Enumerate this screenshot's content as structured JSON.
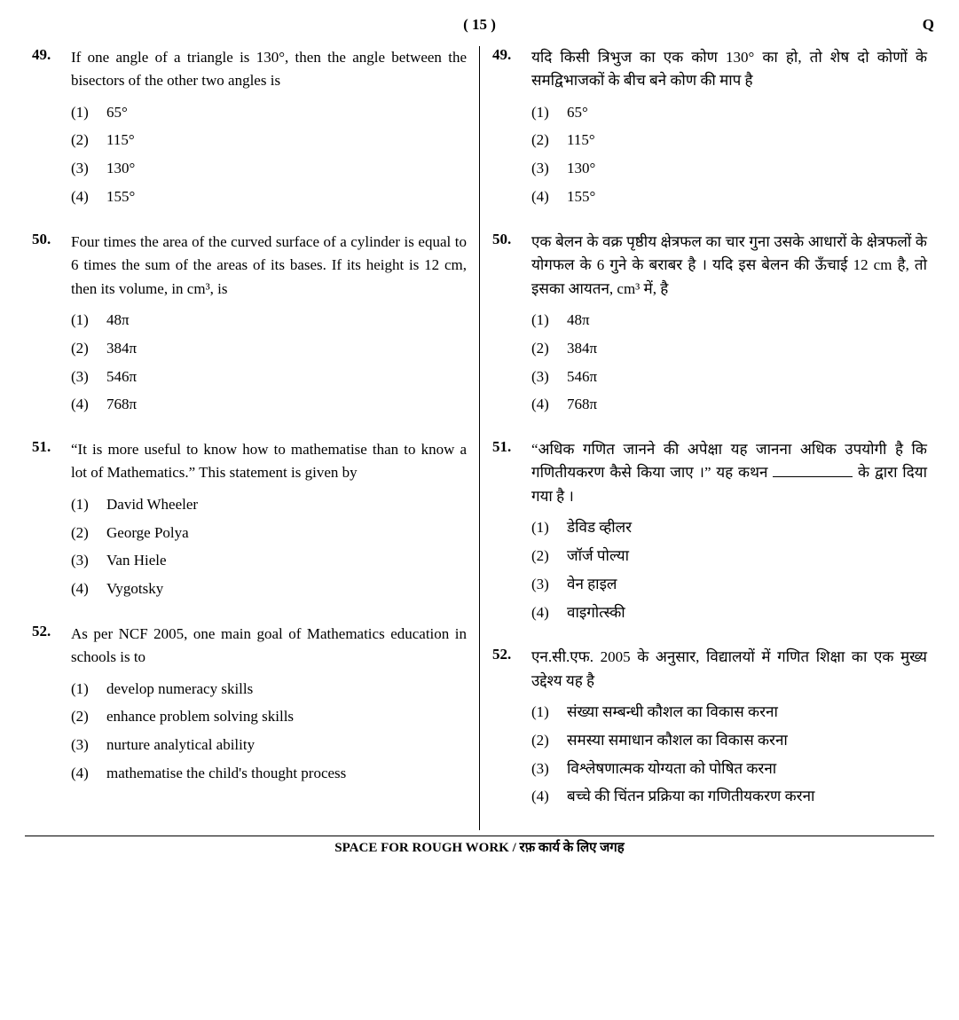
{
  "header": {
    "page_num": "( 15 )",
    "code": "Q"
  },
  "footer": "SPACE FOR ROUGH WORK / रफ़ कार्य के लिए जगह",
  "left": [
    {
      "num": "49.",
      "text": "If one angle of a triangle is 130°, then the angle between the bisectors of the other two angles is",
      "opts": [
        {
          "n": "(1)",
          "t": "65°"
        },
        {
          "n": "(2)",
          "t": "115°"
        },
        {
          "n": "(3)",
          "t": "130°"
        },
        {
          "n": "(4)",
          "t": "155°"
        }
      ]
    },
    {
      "num": "50.",
      "text": "Four times the area of the curved surface of a cylinder is equal to 6 times the sum of the areas of its bases. If its height is 12 cm, then its volume, in cm³, is",
      "opts": [
        {
          "n": "(1)",
          "t": "48π"
        },
        {
          "n": "(2)",
          "t": "384π"
        },
        {
          "n": "(3)",
          "t": "546π"
        },
        {
          "n": "(4)",
          "t": "768π"
        }
      ]
    },
    {
      "num": "51.",
      "text": "“It is more useful to know how to mathematise than to know a lot of Mathematics.” This statement is given by",
      "opts": [
        {
          "n": "(1)",
          "t": "David Wheeler"
        },
        {
          "n": "(2)",
          "t": "George Polya"
        },
        {
          "n": "(3)",
          "t": "Van Hiele"
        },
        {
          "n": "(4)",
          "t": "Vygotsky"
        }
      ]
    },
    {
      "num": "52.",
      "text": "As per NCF 2005, one main goal of Mathematics education in schools is to",
      "opts": [
        {
          "n": "(1)",
          "t": "develop numeracy skills"
        },
        {
          "n": "(2)",
          "t": "enhance problem solving skills"
        },
        {
          "n": "(3)",
          "t": "nurture analytical ability"
        },
        {
          "n": "(4)",
          "t": "mathematise the child's thought process"
        }
      ]
    }
  ],
  "right": [
    {
      "num": "49.",
      "text": "यदि किसी त्रिभुज का एक कोण 130° का हो, तो शेष दो कोणों के समद्विभाजकों के बीच बने कोण की माप है",
      "opts": [
        {
          "n": "(1)",
          "t": "65°"
        },
        {
          "n": "(2)",
          "t": "115°"
        },
        {
          "n": "(3)",
          "t": "130°"
        },
        {
          "n": "(4)",
          "t": "155°"
        }
      ]
    },
    {
      "num": "50.",
      "text": "एक बेलन के वक्र पृष्ठीय क्षेत्रफल का चार गुना उसके आधारों के क्षेत्रफलों के योगफल के 6 गुने के बराबर है । यदि इस बेलन की ऊँचाई 12 cm है, तो इसका आयतन, cm³ में, है",
      "opts": [
        {
          "n": "(1)",
          "t": "48π"
        },
        {
          "n": "(2)",
          "t": "384π"
        },
        {
          "n": "(3)",
          "t": "546π"
        },
        {
          "n": "(4)",
          "t": "768π"
        }
      ]
    },
    {
      "num": "51.",
      "text_pre": "“अधिक गणित जानने की अपेक्षा यह जानना अधिक उपयोगी है कि गणितीयकरण कैसे किया जाए ।” यह कथन ",
      "text_post": " के द्वारा दिया गया है ।",
      "has_blank": true,
      "opts": [
        {
          "n": "(1)",
          "t": "डेविड व्हीलर"
        },
        {
          "n": "(2)",
          "t": "जॉर्ज पोल्या"
        },
        {
          "n": "(3)",
          "t": "वेन हाइल"
        },
        {
          "n": "(4)",
          "t": "वाइगोत्स्की"
        }
      ]
    },
    {
      "num": "52.",
      "text": "एन.सी.एफ. 2005 के अनुसार, विद्यालयों में गणित शिक्षा का एक मुख्य उद्देश्य यह है",
      "opts": [
        {
          "n": "(1)",
          "t": "संख्या सम्बन्धी कौशल का विकास करना"
        },
        {
          "n": "(2)",
          "t": "समस्या समाधान कौशल का विकास करना"
        },
        {
          "n": "(3)",
          "t": "विश्लेषणात्मक योग्यता को पोषित करना"
        },
        {
          "n": "(4)",
          "t": "बच्चे की चिंतन प्रक्रिया का गणितीयकरण करना"
        }
      ]
    }
  ]
}
